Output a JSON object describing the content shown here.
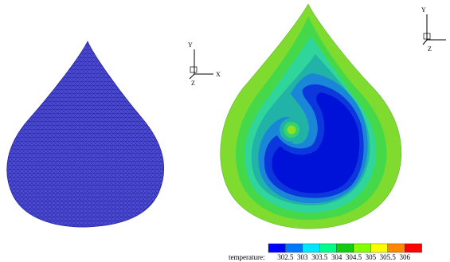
{
  "left_panel": {
    "axes_triad": {
      "y_label": "Y",
      "z_label": "Z",
      "x_label": "X"
    }
  },
  "right_panel": {
    "axes_triad": {
      "y_label": "Y",
      "z_label": "Z"
    }
  },
  "legend": {
    "title": "temperature:",
    "ticks": [
      "302.5",
      "303",
      "303.5",
      "304",
      "304.5",
      "305",
      "305.5",
      "306"
    ],
    "colors": [
      "#0000ff",
      "#0077ff",
      "#00e6ff",
      "#00ff88",
      "#11cc11",
      "#88ff00",
      "#ffff00",
      "#ff8800",
      "#ff0000"
    ]
  },
  "colors": {
    "mesh_fill": "#4a4acf",
    "mesh_line": "#2a2aa0",
    "contour_outer": "#7fdc2f",
    "contour_2": "#33d16f",
    "contour_3": "#2aaa88",
    "contour_4": "#1a8ad8",
    "contour_5": "#0e5fe0",
    "contour_core": "#0011dd"
  }
}
